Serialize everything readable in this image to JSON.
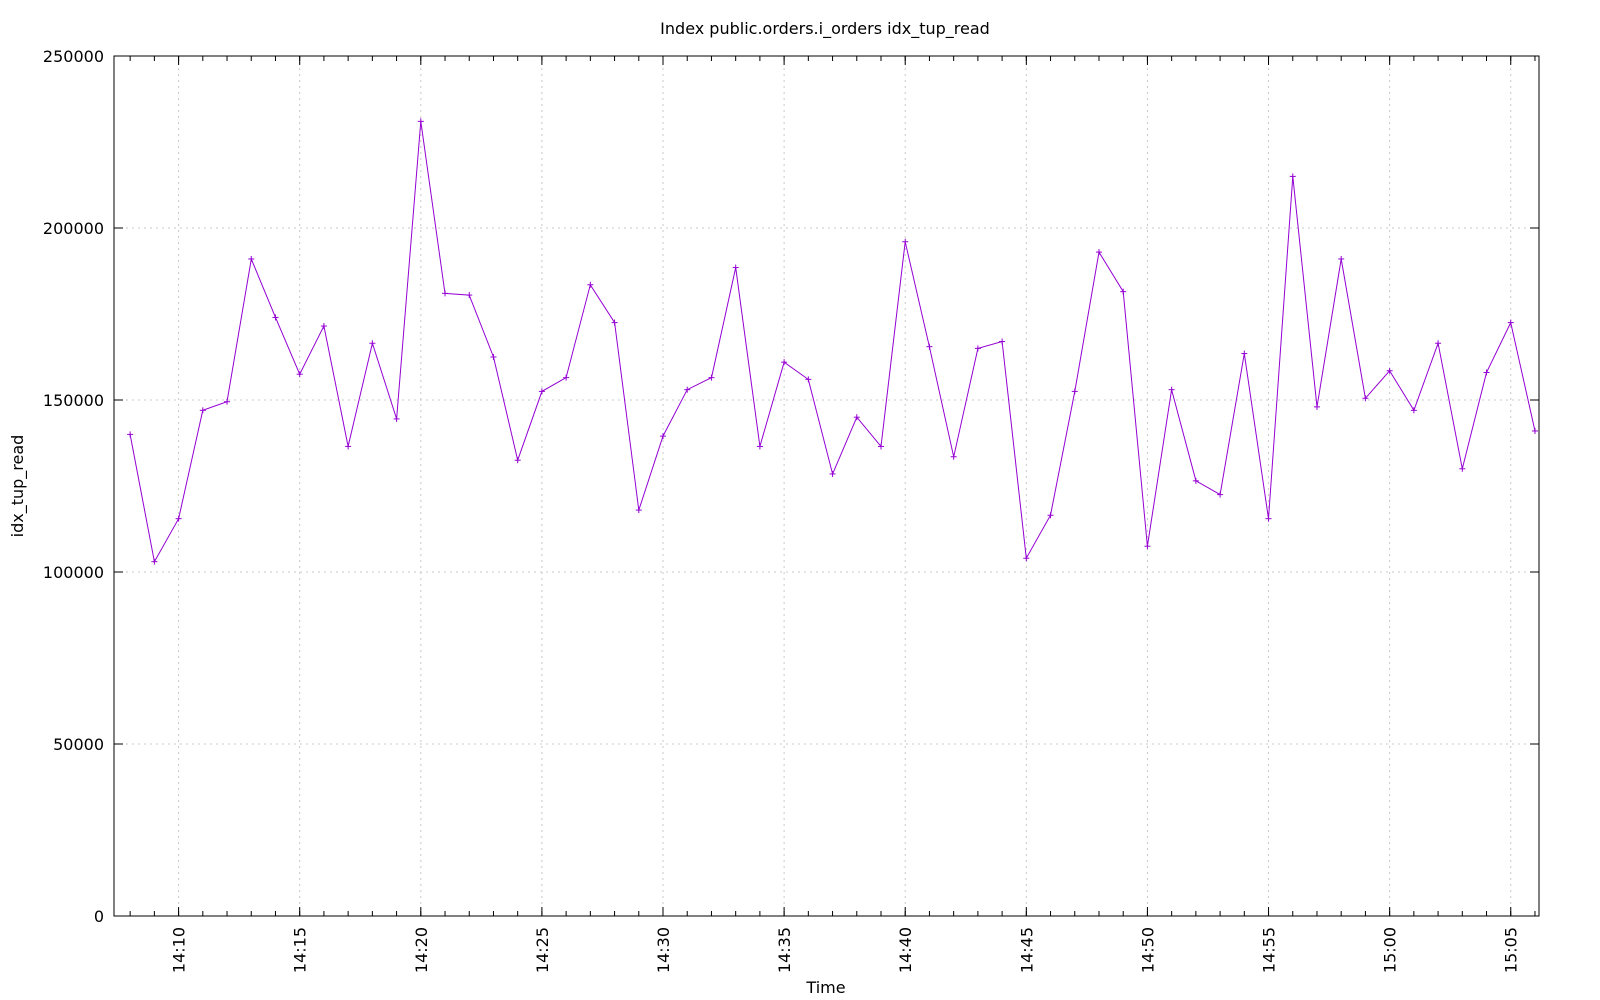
{
  "chart_data": {
    "type": "line",
    "title": "Index public.orders.i_orders idx_tup_read",
    "xlabel": "Time",
    "ylabel": "idx_tup_read",
    "ylim": [
      0,
      250000
    ],
    "y_ticks": [
      0,
      50000,
      100000,
      150000,
      200000,
      250000
    ],
    "y_tick_labels": [
      "0",
      "50000",
      "100000",
      "150000",
      "200000",
      "250000"
    ],
    "x_domain": [
      "14:07:20",
      "15:06:10"
    ],
    "x_ticks": [
      "14:10",
      "14:15",
      "14:20",
      "14:25",
      "14:30",
      "14:35",
      "14:40",
      "14:45",
      "14:50",
      "14:55",
      "15:00",
      "15:05"
    ],
    "grid": true,
    "legend": "none",
    "series_color": "#9400d3",
    "series": [
      {
        "x": [
          "14:08",
          "14:09",
          "14:10",
          "14:11",
          "14:12",
          "14:13",
          "14:14",
          "14:15",
          "14:16",
          "14:17",
          "14:18",
          "14:19",
          "14:20",
          "14:21",
          "14:22",
          "14:23",
          "14:24",
          "14:25",
          "14:26",
          "14:27",
          "14:28",
          "14:29",
          "14:30",
          "14:31",
          "14:32",
          "14:33",
          "14:34",
          "14:35",
          "14:36",
          "14:37",
          "14:38",
          "14:39",
          "14:40",
          "14:41",
          "14:42",
          "14:43",
          "14:44",
          "14:45",
          "14:46",
          "14:47",
          "14:48",
          "14:49",
          "14:50",
          "14:51",
          "14:52",
          "14:53",
          "14:54",
          "14:55",
          "14:56",
          "14:57",
          "14:58",
          "14:59",
          "15:00",
          "15:01",
          "15:02",
          "15:03",
          "15:04",
          "15:05",
          "15:06"
        ],
        "values": [
          140000,
          103000,
          115500,
          147000,
          149500,
          191000,
          174000,
          157500,
          171500,
          136500,
          166500,
          144500,
          231000,
          181000,
          180500,
          162500,
          132500,
          152500,
          156500,
          183500,
          172500,
          118000,
          139500,
          153000,
          156500,
          188500,
          136500,
          161000,
          156000,
          128500,
          145000,
          136500,
          196000,
          165500,
          133500,
          165000,
          167000,
          104000,
          116500,
          152500,
          193000,
          181500,
          107500,
          153000,
          126500,
          122500,
          163500,
          115500,
          215000,
          148000,
          191000,
          150500,
          158500,
          147000,
          166500,
          130000,
          158000,
          172500,
          141000
        ]
      }
    ]
  }
}
